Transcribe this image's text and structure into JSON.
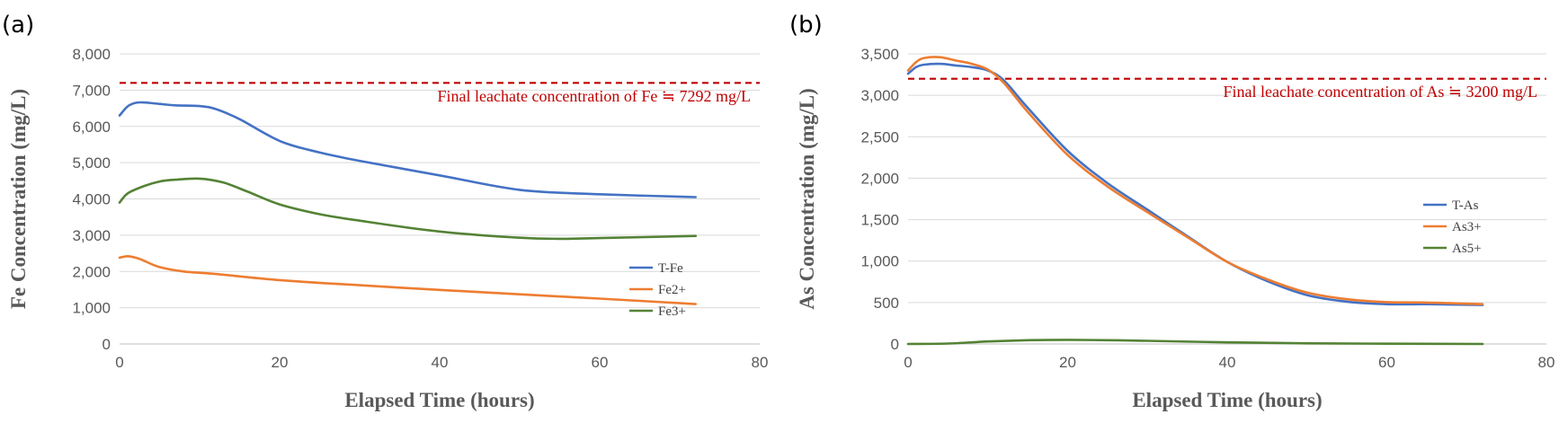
{
  "chart_data": [
    {
      "type": "line",
      "panel_label": "(a)",
      "xlabel": "Elapsed Time (hours)",
      "ylabel": "Fe Concentration (mg/L)",
      "xlim": [
        0,
        80
      ],
      "ylim": [
        0,
        8000
      ],
      "xticks": [
        0,
        20,
        40,
        60,
        80
      ],
      "yticks": [
        0,
        1000,
        2000,
        3000,
        4000,
        5000,
        6000,
        7000,
        8000
      ],
      "xtick_labels": [
        "0",
        "20",
        "40",
        "60",
        "80"
      ],
      "ytick_labels": [
        "0",
        "1,000",
        "2,000",
        "3,000",
        "4,000",
        "5,000",
        "6,000",
        "7,000",
        "8,000"
      ],
      "grid": "horizontal",
      "legend_position": "bottom-right",
      "reference_line": {
        "y": 7200,
        "color": "#c00000",
        "style": "dashed"
      },
      "annotation": "Final leachate concentration of Fe ≒ 7292 mg/L",
      "series": [
        {
          "name": "T-Fe",
          "color": "#4472c4",
          "x": [
            0,
            1,
            2,
            3,
            5,
            7,
            10,
            12,
            15,
            20,
            25,
            30,
            40,
            50,
            60,
            72
          ],
          "y": [
            6300,
            6550,
            6650,
            6660,
            6620,
            6580,
            6560,
            6480,
            6200,
            5600,
            5280,
            5050,
            4650,
            4250,
            4130,
            4050
          ]
        },
        {
          "name": "Fe2+",
          "color": "#ed7d31",
          "x": [
            0,
            1,
            2,
            3,
            5,
            8,
            12,
            20,
            30,
            40,
            50,
            60,
            72
          ],
          "y": [
            2380,
            2420,
            2380,
            2300,
            2120,
            2000,
            1930,
            1760,
            1620,
            1490,
            1370,
            1250,
            1100
          ]
        },
        {
          "name": "Fe3+",
          "color": "#548235",
          "x": [
            0,
            1,
            3,
            5,
            7,
            10,
            13,
            16,
            20,
            25,
            30,
            40,
            50,
            55,
            60,
            72
          ],
          "y": [
            3900,
            4150,
            4350,
            4480,
            4530,
            4560,
            4450,
            4200,
            3850,
            3580,
            3400,
            3100,
            2930,
            2900,
            2920,
            2980
          ]
        }
      ]
    },
    {
      "type": "line",
      "panel_label": "(b)",
      "xlabel": "Elapsed Time (hours)",
      "ylabel": "As Concentration (mg/L)",
      "xlim": [
        0,
        80
      ],
      "ylim": [
        0,
        3500
      ],
      "xticks": [
        0,
        20,
        40,
        60,
        80
      ],
      "yticks": [
        0,
        500,
        1000,
        1500,
        2000,
        2500,
        3000,
        3500
      ],
      "xtick_labels": [
        "0",
        "20",
        "40",
        "60",
        "80"
      ],
      "ytick_labels": [
        "0",
        "500",
        "1,000",
        "1,500",
        "2,000",
        "2,500",
        "3,000",
        "3,500"
      ],
      "grid": "horizontal",
      "legend_position": "right",
      "reference_line": {
        "y": 3200,
        "color": "#c00000",
        "style": "dashed"
      },
      "annotation": "Final leachate concentration of As ≒ 3200 mg/L",
      "series": [
        {
          "name": "T-As",
          "color": "#4472c4",
          "x": [
            0,
            1,
            2,
            4,
            6,
            8,
            10,
            12,
            15,
            20,
            25,
            30,
            35,
            40,
            45,
            50,
            55,
            60,
            65,
            72
          ],
          "y": [
            3260,
            3340,
            3370,
            3380,
            3360,
            3340,
            3300,
            3180,
            2850,
            2330,
            1940,
            1620,
            1300,
            990,
            760,
            590,
            510,
            480,
            480,
            470
          ]
        },
        {
          "name": "As3+",
          "color": "#ed7d31",
          "x": [
            0,
            1,
            2,
            4,
            6,
            8,
            10,
            12,
            15,
            20,
            25,
            30,
            35,
            40,
            45,
            50,
            55,
            60,
            65,
            72
          ],
          "y": [
            3300,
            3400,
            3450,
            3460,
            3420,
            3380,
            3310,
            3150,
            2800,
            2280,
            1900,
            1590,
            1290,
            990,
            780,
            620,
            540,
            505,
            500,
            480
          ]
        },
        {
          "name": "As5+",
          "color": "#548235",
          "x": [
            0,
            5,
            10,
            15,
            20,
            25,
            30,
            40,
            50,
            60,
            72
          ],
          "y": [
            0,
            5,
            30,
            45,
            50,
            45,
            38,
            20,
            8,
            3,
            0
          ]
        }
      ]
    }
  ]
}
